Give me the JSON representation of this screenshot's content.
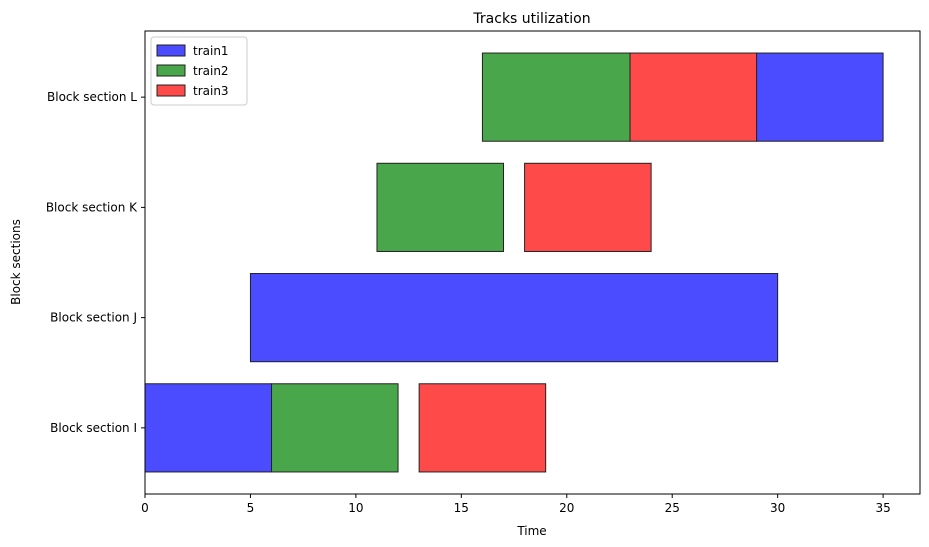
{
  "chart_data": {
    "type": "bar",
    "orientation": "horizontal",
    "title": "Tracks utilization",
    "xlabel": "Time",
    "ylabel": "Block sections",
    "xlim": [
      0,
      36.75
    ],
    "xticks": [
      0,
      5,
      10,
      15,
      20,
      25,
      30,
      35
    ],
    "categories": [
      "Block section I",
      "Block section J",
      "Block section K",
      "Block section L"
    ],
    "grid": false,
    "legend_position": "top-left",
    "series": [
      {
        "name": "train1",
        "color": "#4b4bff",
        "intervals": [
          {
            "category": "Block section I",
            "start": 0,
            "end": 6
          },
          {
            "category": "Block section J",
            "start": 5,
            "end": 30
          },
          {
            "category": "Block section L",
            "start": 29,
            "end": 35
          }
        ]
      },
      {
        "name": "train2",
        "color": "#4aa64a",
        "intervals": [
          {
            "category": "Block section I",
            "start": 6,
            "end": 12
          },
          {
            "category": "Block section K",
            "start": 11,
            "end": 17
          },
          {
            "category": "Block section L",
            "start": 16,
            "end": 23
          }
        ]
      },
      {
        "name": "train3",
        "color": "#ff4a4a",
        "intervals": [
          {
            "category": "Block section I",
            "start": 13,
            "end": 19
          },
          {
            "category": "Block section K",
            "start": 18,
            "end": 24
          },
          {
            "category": "Block section L",
            "start": 23,
            "end": 29
          }
        ]
      }
    ]
  }
}
